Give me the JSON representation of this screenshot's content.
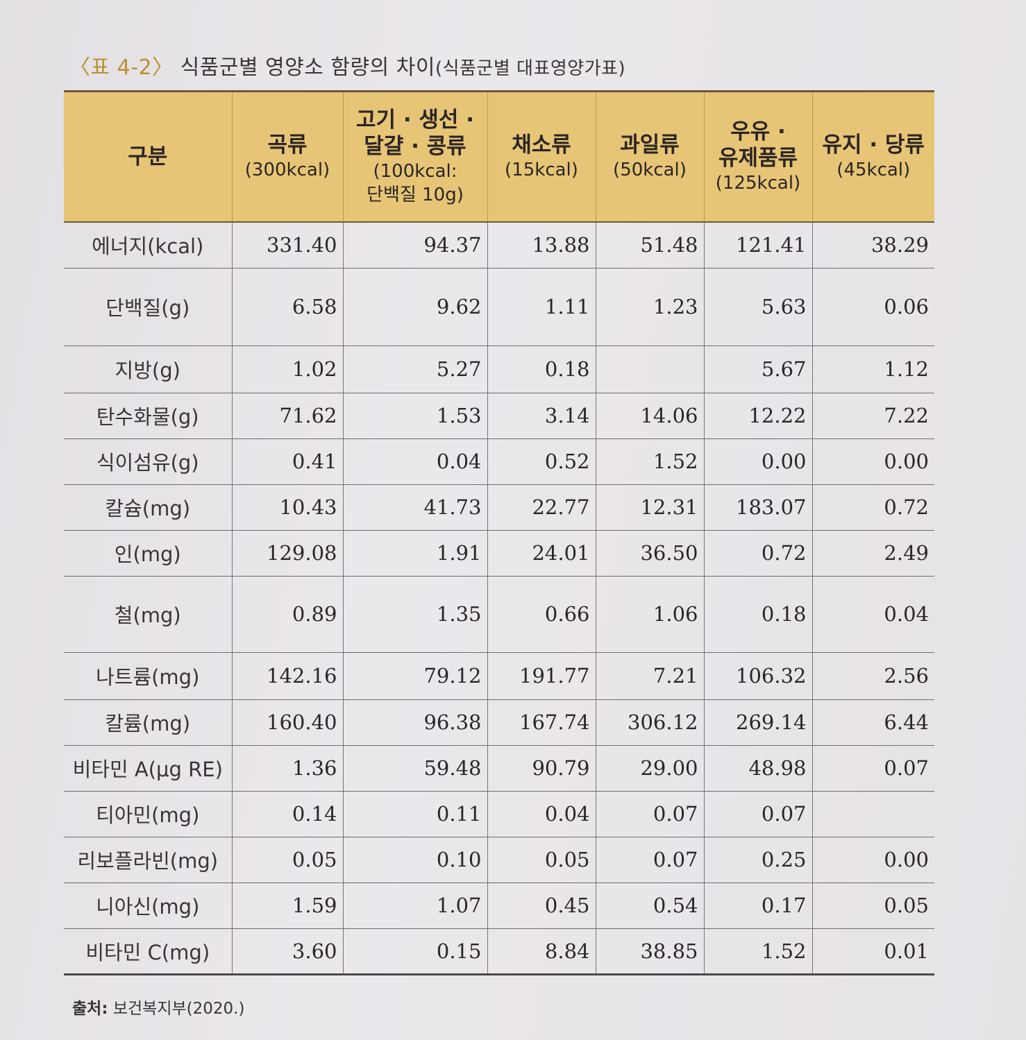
{
  "caption": {
    "label": "〈표 4-2〉",
    "title": "식품군별 영양소 함량의 차이",
    "subtitle": "(식품군별 대표영양가표)"
  },
  "table": {
    "header": {
      "category": "구분",
      "columns": [
        {
          "name": "곡류",
          "sub": "(300kcal)",
          "sub2": ""
        },
        {
          "name": "고기 · 생선 ·",
          "name2": "달걀 · 콩류",
          "sub": "(100kcal:",
          "sub2": "단백질 10g)"
        },
        {
          "name": "채소류",
          "sub": "(15kcal)",
          "sub2": ""
        },
        {
          "name": "과일류",
          "sub": "(50kcal)",
          "sub2": ""
        },
        {
          "name": "우유 ·",
          "name2": "유제품류",
          "sub": "(125kcal)"
        },
        {
          "name": "유지 · 당류",
          "sub": "(45kcal)",
          "sub2": ""
        }
      ]
    },
    "rows": [
      {
        "label": "에너지(kcal)",
        "values": [
          "331.40",
          "94.37",
          "13.88",
          "51.48",
          "121.41",
          "38.29"
        ]
      },
      {
        "label": "단백질(g)",
        "values": [
          "6.58",
          "9.62",
          "1.11",
          "1.23",
          "5.63",
          "0.06"
        ]
      },
      {
        "label": "지방(g)",
        "values": [
          "1.02",
          "5.27",
          "0.18",
          "",
          "5.67",
          "1.12"
        ]
      },
      {
        "label": "탄수화물(g)",
        "values": [
          "71.62",
          "1.53",
          "3.14",
          "14.06",
          "12.22",
          "7.22"
        ]
      },
      {
        "label": "식이섬유(g)",
        "values": [
          "0.41",
          "0.04",
          "0.52",
          "1.52",
          "0.00",
          "0.00"
        ]
      },
      {
        "label": "칼슘(mg)",
        "values": [
          "10.43",
          "41.73",
          "22.77",
          "12.31",
          "183.07",
          "0.72"
        ]
      },
      {
        "label": "인(mg)",
        "values": [
          "129.08",
          "1.91",
          "24.01",
          "36.50",
          "0.72",
          "2.49"
        ]
      },
      {
        "label": "철(mg)",
        "values": [
          "0.89",
          "1.35",
          "0.66",
          "1.06",
          "0.18",
          "0.04"
        ]
      },
      {
        "label": "나트륨(mg)",
        "values": [
          "142.16",
          "79.12",
          "191.77",
          "7.21",
          "106.32",
          "2.56"
        ]
      },
      {
        "label": "칼륨(mg)",
        "values": [
          "160.40",
          "96.38",
          "167.74",
          "306.12",
          "269.14",
          "6.44"
        ]
      },
      {
        "label": "비타민 A(μg RE)",
        "values": [
          "1.36",
          "59.48",
          "90.79",
          "29.00",
          "48.98",
          "0.07"
        ]
      },
      {
        "label": "티아민(mg)",
        "values": [
          "0.14",
          "0.11",
          "0.04",
          "0.07",
          "0.07",
          ""
        ]
      },
      {
        "label": "리보플라빈(mg)",
        "values": [
          "0.05",
          "0.10",
          "0.05",
          "0.07",
          "0.25",
          "0.00"
        ]
      },
      {
        "label": "니아신(mg)",
        "values": [
          "1.59",
          "1.07",
          "0.45",
          "0.54",
          "0.17",
          "0.05"
        ]
      },
      {
        "label": "비타민 C(mg)",
        "values": [
          "3.60",
          "0.15",
          "8.84",
          "38.85",
          "1.52",
          "0.01"
        ]
      }
    ]
  },
  "source": {
    "label": "출처:",
    "text": "보건복지부(2020.)"
  }
}
